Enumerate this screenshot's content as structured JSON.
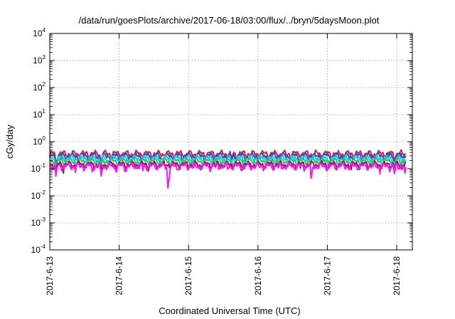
{
  "chart_data": {
    "type": "line",
    "title": "/data/run/goesPlots/archive/2017-06-18/03:00/flux/../bryn/5daysMoon.plot",
    "xlabel": "Coordinated Universal Time (UTC)",
    "ylabel": "cGy/day",
    "y_scale": "log",
    "ylim": [
      0.0001,
      10000
    ],
    "y_ticks": [
      {
        "base": "10",
        "exp": "-4",
        "value": 0.0001
      },
      {
        "base": "10",
        "exp": "-3",
        "value": 0.001
      },
      {
        "base": "10",
        "exp": "-2",
        "value": 0.01
      },
      {
        "base": "10",
        "exp": "-1",
        "value": 0.1
      },
      {
        "base": "10",
        "exp": "0",
        "value": 1
      },
      {
        "base": "10",
        "exp": "1",
        "value": 10
      },
      {
        "base": "10",
        "exp": "2",
        "value": 100
      },
      {
        "base": "10",
        "exp": "3",
        "value": 1000
      },
      {
        "base": "10",
        "exp": "4",
        "value": 10000
      }
    ],
    "xlim": [
      "2017-06-13",
      "2017-06-18 03:00"
    ],
    "x_ticks": [
      "2017-6-13",
      "2017-6-14",
      "2017-6-15",
      "2017-6-16",
      "2017-6-17",
      "2017-6-18"
    ],
    "grid": true,
    "series": [
      {
        "color": "#e0203a",
        "base": 0.36,
        "dips": [
          [
            0.09,
            0.35
          ],
          [
            0.74,
            0.45
          ],
          [
            2.62,
            0.55
          ],
          [
            4.97,
            0.6
          ]
        ]
      },
      {
        "color": "#2a4fd6",
        "base": 0.3,
        "dips": [
          [
            0.09,
            0.35
          ],
          [
            0.74,
            0.45
          ],
          [
            1.62,
            0.7
          ],
          [
            2.62,
            0.55
          ],
          [
            4.97,
            0.6
          ]
        ]
      },
      {
        "color": "#20c8d0",
        "base": 0.24,
        "dips": [
          [
            0.09,
            0.4
          ],
          [
            0.74,
            0.4
          ],
          [
            2.62,
            0.6
          ],
          [
            4.97,
            0.6
          ]
        ]
      },
      {
        "color": "#30c070",
        "base": 0.19,
        "dips": [
          [
            0.09,
            0.45
          ],
          [
            0.74,
            0.45
          ],
          [
            2.62,
            0.6
          ],
          [
            4.97,
            0.6
          ]
        ]
      },
      {
        "color": "#8a1d4a",
        "base": 0.145,
        "dips": [
          [
            0.09,
            0.5
          ],
          [
            0.74,
            0.5
          ],
          [
            4.97,
            0.6
          ]
        ]
      },
      {
        "color": "#ff10ff",
        "base": 0.125,
        "dips": [
          [
            0.09,
            0.38
          ],
          [
            0.74,
            0.4
          ],
          [
            0.96,
            0.6
          ],
          [
            1.7,
            0.35
          ],
          [
            1.71,
            0.017
          ],
          [
            1.72,
            0.35
          ],
          [
            3.77,
            0.22
          ],
          [
            4.97,
            0.48
          ],
          [
            5.12,
            0.55
          ]
        ]
      }
    ]
  }
}
